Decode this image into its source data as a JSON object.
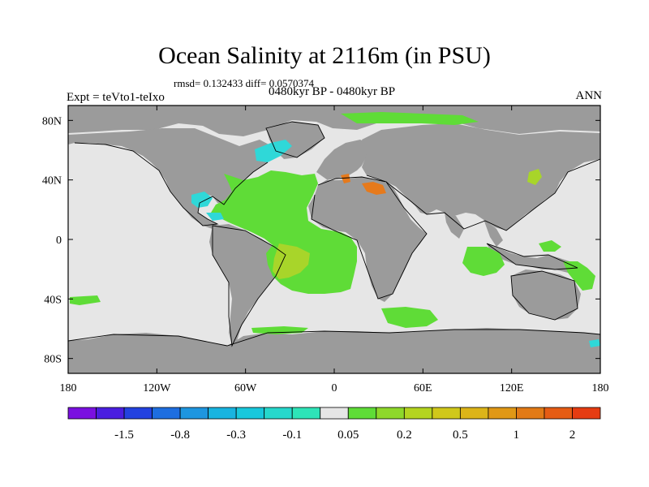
{
  "title": "Ocean Salinity at 2116m (in PSU)",
  "stats": "rmsd= 0.132433 diff= 0.0570374",
  "left_label": "Expt = teVto1-teIxo",
  "center_label": "0480kyr BP - 0480kyr BP",
  "right_label": "ANN",
  "map": {
    "lon_range": [
      -180,
      180
    ],
    "lat_range": [
      -90,
      90
    ],
    "x_ticks": [
      {
        "value": -180,
        "label": "180"
      },
      {
        "value": -120,
        "label": "120W"
      },
      {
        "value": -60,
        "label": "60W"
      },
      {
        "value": 0,
        "label": "0"
      },
      {
        "value": 60,
        "label": "60E"
      },
      {
        "value": 120,
        "label": "120E"
      },
      {
        "value": 180,
        "label": "180"
      }
    ],
    "y_ticks": [
      {
        "value": 80,
        "label": "80N"
      },
      {
        "value": 40,
        "label": "40N"
      },
      {
        "value": 0,
        "label": "0"
      },
      {
        "value": -40,
        "label": "40S"
      },
      {
        "value": -80,
        "label": "80S"
      }
    ],
    "colors": {
      "land": "#9b9b9b",
      "near_zero": "#e6e6e6",
      "green": "#5fdc37",
      "yellow_green": "#a8d52a",
      "cyan": "#2fd8d8",
      "orange": "#e67a1c"
    }
  },
  "colorbar": {
    "colors": [
      "#7a10e0",
      "#4a1ee0",
      "#2342e0",
      "#1e6ee0",
      "#1e96e0",
      "#18b4e0",
      "#18c8dc",
      "#26d8cc",
      "#2ee4b8",
      "#e6e6e6",
      "#5fdc37",
      "#8ed82a",
      "#b4d420",
      "#d0c81a",
      "#dcb418",
      "#e09816",
      "#e27a16",
      "#e65c14",
      "#e63c12"
    ],
    "labels": [
      "-1.5",
      "-0.8",
      "-0.3",
      "-0.1",
      "0.05",
      "0.2",
      "0.5",
      "1",
      "2"
    ]
  }
}
